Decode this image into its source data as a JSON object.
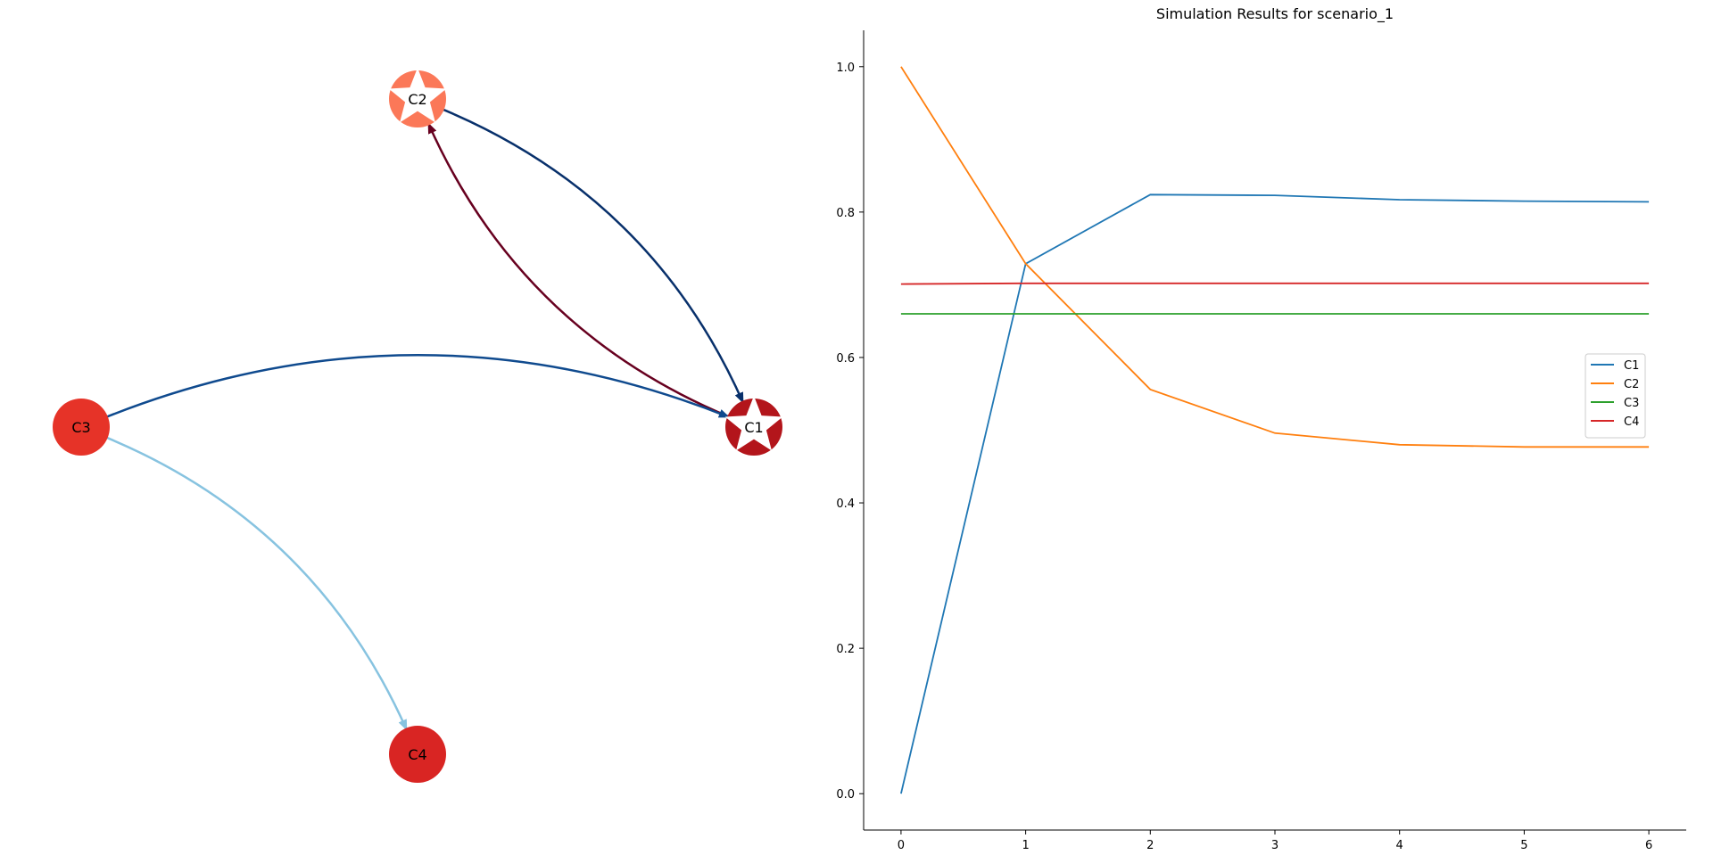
{
  "network": {
    "nodes": [
      {
        "id": "C1",
        "label": "C1",
        "color": "#b3151b",
        "shape": "star"
      },
      {
        "id": "C2",
        "label": "C2",
        "color": "#fb7858",
        "shape": "star"
      },
      {
        "id": "C3",
        "label": "C3",
        "color": "#e63328",
        "shape": "circle"
      },
      {
        "id": "C4",
        "label": "C4",
        "color": "#d92523",
        "shape": "circle"
      }
    ],
    "edges": [
      {
        "from": "C1",
        "to": "C2",
        "color": "#67001f"
      },
      {
        "from": "C2",
        "to": "C1",
        "color": "#08306b"
      },
      {
        "from": "C3",
        "to": "C1",
        "color": "#0f4a8e"
      },
      {
        "from": "C3",
        "to": "C4",
        "color": "#87c3e0"
      }
    ]
  },
  "chart_data": {
    "type": "line",
    "title": "Simulation Results for scenario_1",
    "xlabel": "",
    "ylabel": "",
    "x": [
      0,
      1,
      2,
      3,
      4,
      5,
      6
    ],
    "xlim": [
      -0.3,
      6.3
    ],
    "ylim": [
      -0.05,
      1.05
    ],
    "xticks": [
      "0",
      "1",
      "2",
      "3",
      "4",
      "5",
      "6"
    ],
    "yticks": [
      "0.0",
      "0.2",
      "0.4",
      "0.6",
      "0.8",
      "1.0"
    ],
    "grid": false,
    "legend_position": "center-right",
    "series": [
      {
        "name": "C1",
        "color": "#1f77b4",
        "values": [
          0.0,
          0.729,
          0.824,
          0.823,
          0.817,
          0.815,
          0.814
        ]
      },
      {
        "name": "C2",
        "color": "#ff7f0e",
        "values": [
          1.0,
          0.729,
          0.556,
          0.496,
          0.48,
          0.477,
          0.477
        ]
      },
      {
        "name": "C3",
        "color": "#2ca02c",
        "values": [
          0.66,
          0.66,
          0.66,
          0.66,
          0.66,
          0.66,
          0.66
        ]
      },
      {
        "name": "C4",
        "color": "#d62728",
        "values": [
          0.701,
          0.702,
          0.702,
          0.702,
          0.702,
          0.702,
          0.702
        ]
      }
    ]
  }
}
